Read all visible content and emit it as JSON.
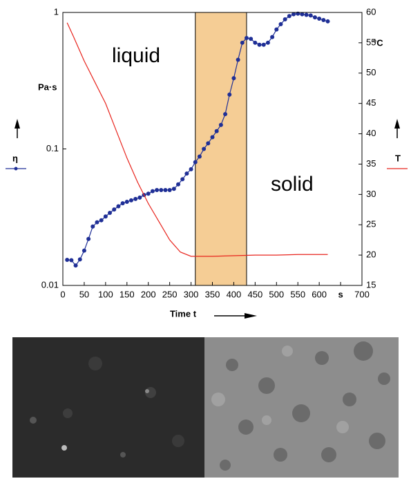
{
  "chart_data": {
    "type": "line",
    "x_label": "Time t",
    "y_label": "Pa·s",
    "y2_label": "°C",
    "annotations": [
      "liquid",
      "solid"
    ],
    "highlight_x": [
      310,
      430
    ],
    "highlight_color": "#f5cd95",
    "y_log": true,
    "xlim": [
      0,
      700
    ],
    "xticks": [
      0,
      50,
      100,
      150,
      200,
      250,
      300,
      350,
      400,
      450,
      500,
      550,
      600,
      {
        "value": 650,
        "label": "s"
      },
      700
    ],
    "ylim": [
      0.01,
      1
    ],
    "yticks": [
      0.01,
      0.1,
      1
    ],
    "y2lim": [
      15,
      60
    ],
    "y2ticks": [
      15,
      20,
      25,
      30,
      35,
      40,
      45,
      50,
      55,
      60
    ],
    "series": [
      {
        "name": "η",
        "color": "#1f2f96",
        "marker": true,
        "x": [
          10,
          20,
          30,
          40,
          50,
          60,
          70,
          80,
          90,
          100,
          110,
          120,
          130,
          140,
          150,
          160,
          170,
          180,
          190,
          200,
          210,
          220,
          230,
          240,
          250,
          260,
          270,
          280,
          290,
          300,
          310,
          320,
          330,
          340,
          350,
          360,
          370,
          380,
          390,
          400,
          410,
          420,
          430,
          440,
          450,
          460,
          470,
          480,
          490,
          500,
          510,
          520,
          530,
          540,
          550,
          560,
          570,
          580,
          590,
          600,
          610,
          620
        ],
        "values": [
          0.0154,
          0.0153,
          0.014,
          0.0155,
          0.018,
          0.0219,
          0.027,
          0.029,
          0.03,
          0.032,
          0.034,
          0.036,
          0.038,
          0.04,
          0.041,
          0.042,
          0.043,
          0.044,
          0.046,
          0.047,
          0.049,
          0.05,
          0.05,
          0.05,
          0.05,
          0.051,
          0.055,
          0.06,
          0.066,
          0.071,
          0.08,
          0.088,
          0.1,
          0.11,
          0.122,
          0.135,
          0.15,
          0.18,
          0.25,
          0.33,
          0.45,
          0.6,
          0.65,
          0.64,
          0.6,
          0.58,
          0.58,
          0.6,
          0.66,
          0.75,
          0.82,
          0.89,
          0.94,
          0.97,
          0.98,
          0.97,
          0.96,
          0.95,
          0.92,
          0.9,
          0.88,
          0.86
        ]
      },
      {
        "name": "T",
        "color": "#e8231c",
        "marker": false,
        "axis": "y2",
        "x": [
          10,
          25,
          50,
          75,
          100,
          125,
          150,
          175,
          200,
          225,
          250,
          275,
          300,
          350,
          400,
          450,
          500,
          550,
          620
        ],
        "values": [
          58.3,
          56,
          52,
          48.5,
          45,
          40.5,
          36,
          32,
          28.5,
          25.5,
          22.5,
          20.5,
          19.8,
          19.8,
          19.9,
          20,
          20,
          20.1,
          20.1
        ]
      }
    ]
  }
}
